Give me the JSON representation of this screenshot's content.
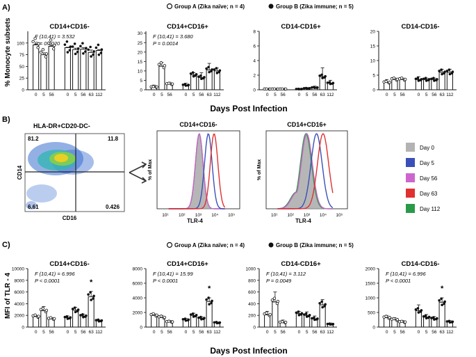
{
  "panel_a": {
    "letter": "A)",
    "legend": {
      "group_a": "Group A (Zika naïve; n = 4)",
      "group_b": "Group B (Zika immune; n = 5)"
    },
    "ylabel": "% Monocyte subsets",
    "xlabel": "Days Post Infection"
  },
  "panel_b": {
    "letter": "B)",
    "gate_title": "HLA-DR+CD20-DC-",
    "gate_xlabel": "CD16",
    "gate_ylabel": "CD14",
    "quadrants": {
      "ul": "81.2",
      "ur": "11.8",
      "ll": "6.61",
      "lr": "0.426"
    },
    "hist_ylabel": "% of Max",
    "hist_xlabel": "TLR-4",
    "x_ticks": [
      "10¹",
      "10²",
      "10³",
      "10⁴",
      "10⁵"
    ],
    "legend": [
      {
        "label": "Day 0",
        "color": "#b3b3b3"
      },
      {
        "label": "Day 5",
        "color": "#3a4fb8"
      },
      {
        "label": "Day 56",
        "color": "#cc66cc"
      },
      {
        "label": "Day 63",
        "color": "#e03030"
      },
      {
        "label": "Day 112",
        "color": "#2a9a48"
      }
    ],
    "histograms": [
      {
        "title": "CD14+CD16-",
        "peaks": {
          "Day 0": 3.05,
          "Day 5": 3.6,
          "Day 56": 3.05,
          "Day 63": 3.95,
          "Day 112": 3.05
        },
        "width": 0.23
      },
      {
        "title": "CD14+CD16+",
        "peaks": {
          "Day 0": 2.95,
          "Day 5": 3.6,
          "Day 56": 3.0,
          "Day 63": 4.0,
          "Day 112": 2.95
        },
        "width": 0.34
      }
    ]
  },
  "panel_c": {
    "letter": "C)",
    "legend": {
      "group_a": "Group A (Zika naïve; n = 4)",
      "group_b": "Group B (Zika immune; n = 5)"
    },
    "ylabel": "MFI of TLR - 4",
    "xlabel": "Days Post Infection"
  },
  "chart_data": [
    {
      "type": "bar",
      "panel": "A",
      "title": "CD14+CD16-",
      "stat_f": "F (10,41) = 3.532",
      "stat_p": "P = 0.0020",
      "categories": [
        "0",
        "5",
        "56",
        "0",
        "5",
        "56",
        "63",
        "112"
      ],
      "groups": [
        "A",
        "A",
        "A",
        "B",
        "B",
        "B",
        "B",
        "B"
      ],
      "values": [
        96,
        75,
        93,
        90,
        86,
        87,
        80,
        84
      ],
      "errors": [
        2,
        4,
        2,
        1,
        3,
        3,
        5,
        2
      ],
      "y_ticks": [
        0,
        25,
        50,
        75,
        100
      ],
      "ylim": [
        0,
        125
      ],
      "annotations": []
    },
    {
      "type": "bar",
      "panel": "A",
      "title": "CD14+CD16+",
      "stat_f": "F (10,41) = 3.680",
      "stat_p": "P = 0.0014",
      "categories": [
        "0",
        "5",
        "56",
        "0",
        "5",
        "56",
        "63",
        "112"
      ],
      "groups": [
        "A",
        "A",
        "A",
        "B",
        "B",
        "B",
        "B",
        "B"
      ],
      "values": [
        1.5,
        12.5,
        3,
        2.5,
        8,
        6.5,
        10.5,
        10
      ],
      "errors": [
        1,
        2,
        1,
        1,
        1,
        2.5,
        3.5,
        1.5
      ],
      "y_ticks": [
        0,
        5,
        10,
        15,
        20,
        25,
        30
      ],
      "ylim": [
        0,
        31
      ],
      "annotations": []
    },
    {
      "type": "bar",
      "panel": "A",
      "title": "CD14-CD16+",
      "stat_f": "",
      "stat_p": "",
      "categories": [
        "0",
        "5",
        "56",
        "0",
        "5",
        "56",
        "63",
        "112"
      ],
      "groups": [
        "A",
        "A",
        "A",
        "B",
        "B",
        "B",
        "B",
        "B"
      ],
      "values": [
        0.1,
        0.1,
        0.1,
        0.1,
        0.2,
        0.3,
        1.8,
        0.9
      ],
      "errors": [
        0.05,
        0.05,
        0.05,
        0.05,
        0.1,
        0.2,
        1.2,
        0.4
      ],
      "y_ticks": [
        0,
        2,
        4,
        6,
        8
      ],
      "ylim": [
        0,
        8
      ],
      "annotations": []
    },
    {
      "type": "bar",
      "panel": "A",
      "title": "CD14-CD16-",
      "stat_f": "",
      "stat_p": "",
      "categories": [
        "0",
        "5",
        "56",
        "0",
        "5",
        "56",
        "63",
        "112"
      ],
      "groups": [
        "A",
        "A",
        "A",
        "B",
        "B",
        "B",
        "B",
        "B"
      ],
      "values": [
        2.5,
        3.5,
        3.5,
        3.5,
        3.5,
        3.5,
        6,
        6
      ],
      "errors": [
        1,
        0.5,
        0.5,
        1,
        0.5,
        0.5,
        1,
        1
      ],
      "y_ticks": [
        0,
        5,
        10,
        15,
        20
      ],
      "ylim": [
        0,
        20
      ],
      "annotations": []
    },
    {
      "type": "bar",
      "panel": "C",
      "title": "CD14+CD16-",
      "stat_f": "F (10,41) = 6.996",
      "stat_p": "P < 0.0001",
      "categories": [
        "0",
        "5",
        "56",
        "0",
        "5",
        "56",
        "63",
        "112"
      ],
      "groups": [
        "A",
        "A",
        "A",
        "B",
        "B",
        "B",
        "B",
        "B"
      ],
      "values": [
        1800,
        2800,
        1400,
        1600,
        2900,
        1900,
        5200,
        1100
      ],
      "errors": [
        200,
        700,
        200,
        300,
        500,
        300,
        900,
        100
      ],
      "y_ticks": [
        0,
        2000,
        4000,
        6000,
        8000,
        10000
      ],
      "ylim": [
        0,
        10000
      ],
      "annotations": [
        "",
        "",
        "",
        "",
        "",
        "",
        "*",
        ""
      ]
    },
    {
      "type": "bar",
      "panel": "C",
      "title": "CD14+CD16+",
      "stat_f": "F (10,41) = 15.99",
      "stat_p": "P < 0.0001",
      "categories": [
        "0",
        "5",
        "56",
        "0",
        "5",
        "56",
        "63",
        "112"
      ],
      "groups": [
        "A",
        "A",
        "A",
        "B",
        "B",
        "B",
        "B",
        "B"
      ],
      "values": [
        1600,
        1300,
        700,
        1000,
        1600,
        1200,
        3500,
        600
      ],
      "errors": [
        200,
        300,
        200,
        200,
        300,
        200,
        500,
        100
      ],
      "y_ticks": [
        0,
        2000,
        4000,
        6000,
        8000
      ],
      "ylim": [
        0,
        8000
      ],
      "annotations": [
        "",
        "",
        "",
        "",
        "",
        "",
        "*",
        ""
      ]
    },
    {
      "type": "bar",
      "panel": "C",
      "title": "CD14-CD16+",
      "stat_f": "F (10,41) = 3.112",
      "stat_p": "P = 0.0049",
      "categories": [
        "0",
        "5",
        "56",
        "0",
        "5",
        "56",
        "63",
        "112"
      ],
      "groups": [
        "A",
        "A",
        "A",
        "B",
        "B",
        "B",
        "B",
        "B"
      ],
      "values": [
        210,
        430,
        80,
        230,
        200,
        140,
        380,
        50
      ],
      "errors": [
        60,
        170,
        40,
        40,
        60,
        50,
        90,
        20
      ],
      "y_ticks": [
        0,
        200,
        400,
        600,
        800,
        1000
      ],
      "ylim": [
        0,
        1000
      ],
      "annotations": []
    },
    {
      "type": "bar",
      "panel": "C",
      "title": "CD14-CD16-",
      "stat_f": "F (10,41) = 6.996",
      "stat_p": "P < 0.0001",
      "categories": [
        "0",
        "5",
        "56",
        "0",
        "5",
        "56",
        "63",
        "112"
      ],
      "groups": [
        "A",
        "A",
        "A",
        "B",
        "B",
        "B",
        "B",
        "B"
      ],
      "values": [
        320,
        250,
        170,
        560,
        340,
        290,
        850,
        180
      ],
      "errors": [
        80,
        70,
        60,
        200,
        90,
        70,
        150,
        40
      ],
      "y_ticks": [
        0,
        500,
        1000,
        1500,
        2000
      ],
      "ylim": [
        0,
        2000
      ],
      "annotations": [
        "",
        "",
        "",
        "",
        "",
        "",
        "*",
        ""
      ]
    }
  ]
}
